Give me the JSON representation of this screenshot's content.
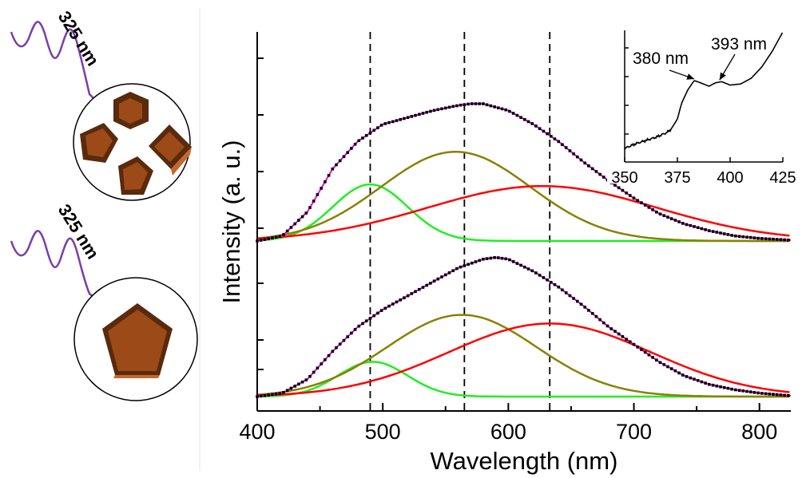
{
  "chart_data": {
    "type": "line",
    "title": "",
    "xlabel": "Wavelength (nm)",
    "ylabel": "Intensity (a. u.)",
    "xlim": [
      400,
      825
    ],
    "x_ticks": [
      400,
      500,
      600,
      700,
      800
    ],
    "reference_lines_x": [
      490,
      565,
      633
    ],
    "panels": [
      {
        "position": "upper",
        "morphology": "multiple polyhedral particles",
        "excitation": "325 nm",
        "ylim": [
          0,
          1
        ],
        "series": [
          {
            "role": "experimental",
            "color": "#000000",
            "style": "squares",
            "x": [
              400,
              420,
              440,
              460,
              480,
              490,
              500,
              520,
              540,
              560,
              570,
              580,
              600,
              620,
              640,
              660,
              680,
              700,
              720,
              740,
              760,
              780,
              800,
              825
            ],
            "y": [
              0.0,
              0.03,
              0.17,
              0.42,
              0.58,
              0.63,
              0.68,
              0.72,
              0.76,
              0.79,
              0.8,
              0.8,
              0.76,
              0.68,
              0.58,
              0.46,
              0.35,
              0.25,
              0.16,
              0.1,
              0.06,
              0.03,
              0.015,
              0.005
            ]
          },
          {
            "role": "fit",
            "color": "#ff00ff",
            "x": [
              400,
              420,
              440,
              460,
              480,
              490,
              500,
              520,
              540,
              560,
              570,
              580,
              600,
              620,
              640,
              660,
              680,
              700,
              720,
              740,
              760,
              780,
              800,
              825
            ],
            "y": [
              0.0,
              0.03,
              0.17,
              0.42,
              0.58,
              0.63,
              0.68,
              0.72,
              0.76,
              0.79,
              0.8,
              0.8,
              0.76,
              0.68,
              0.58,
              0.46,
              0.35,
              0.25,
              0.16,
              0.1,
              0.06,
              0.03,
              0.015,
              0.005
            ]
          },
          {
            "role": "component",
            "color": "#22ee22",
            "peak_x": 490,
            "peak_y": 0.33,
            "fwhm": 70
          },
          {
            "role": "component",
            "color": "#8b8000",
            "peak_x": 558,
            "peak_y": 0.52,
            "fwhm": 140
          },
          {
            "role": "component",
            "color": "#ff0000",
            "peak_x": 627,
            "peak_y": 0.32,
            "fwhm": 215
          }
        ]
      },
      {
        "position": "lower",
        "morphology": "single pentagonal particle",
        "excitation": "325 nm",
        "ylim": [
          0,
          1
        ],
        "series": [
          {
            "role": "experimental",
            "color": "#000000",
            "style": "squares",
            "x": [
              400,
              420,
              440,
              460,
              480,
              500,
              520,
              540,
              560,
              580,
              590,
              600,
              620,
              640,
              660,
              680,
              700,
              720,
              740,
              760,
              780,
              800,
              825
            ],
            "y": [
              0.0,
              0.02,
              0.1,
              0.26,
              0.4,
              0.5,
              0.58,
              0.66,
              0.74,
              0.79,
              0.8,
              0.79,
              0.72,
              0.63,
              0.52,
              0.4,
              0.3,
              0.2,
              0.12,
              0.07,
              0.04,
              0.02,
              0.005
            ]
          },
          {
            "role": "fit",
            "color": "#ff00ff",
            "x": [
              400,
              420,
              440,
              460,
              480,
              500,
              520,
              540,
              560,
              580,
              590,
              600,
              620,
              640,
              660,
              680,
              700,
              720,
              740,
              760,
              780,
              800,
              825
            ],
            "y": [
              0.0,
              0.02,
              0.1,
              0.26,
              0.4,
              0.5,
              0.58,
              0.66,
              0.74,
              0.79,
              0.8,
              0.79,
              0.72,
              0.63,
              0.52,
              0.4,
              0.3,
              0.2,
              0.12,
              0.07,
              0.04,
              0.02,
              0.005
            ]
          },
          {
            "role": "component",
            "color": "#22ee22",
            "peak_x": 492,
            "peak_y": 0.2,
            "fwhm": 65
          },
          {
            "role": "component",
            "color": "#8b8000",
            "peak_x": 563,
            "peak_y": 0.47,
            "fwhm": 140
          },
          {
            "role": "component",
            "color": "#ff0000",
            "peak_x": 633,
            "peak_y": 0.42,
            "fwhm": 190
          }
        ]
      }
    ],
    "inset": {
      "type": "line",
      "position": "top-right",
      "xlim": [
        350,
        425
      ],
      "x_ticks": [
        350,
        375,
        400,
        425
      ],
      "series": [
        {
          "color": "#000000",
          "x": [
            350,
            355,
            360,
            365,
            370,
            372,
            375,
            377,
            380,
            383,
            386,
            390,
            393,
            396,
            400,
            405,
            410,
            415,
            420,
            425
          ],
          "y": [
            0.12,
            0.16,
            0.19,
            0.22,
            0.26,
            0.29,
            0.38,
            0.52,
            0.64,
            0.72,
            0.7,
            0.67,
            0.7,
            0.71,
            0.68,
            0.69,
            0.74,
            0.84,
            0.98,
            1.15
          ]
        }
      ],
      "annotations": [
        {
          "text": "380 nm",
          "x": 383,
          "y": 0.72
        },
        {
          "text": "393 nm",
          "x": 395,
          "y": 0.71
        }
      ]
    }
  },
  "illustration": {
    "excitation_labels": [
      "325 nm",
      "325 nm"
    ],
    "colors": {
      "wave": "#7b3fa8",
      "particle": "#9c4a18",
      "particle_dark": "#5a2a0c",
      "particle_light": "#c46a2a"
    }
  }
}
